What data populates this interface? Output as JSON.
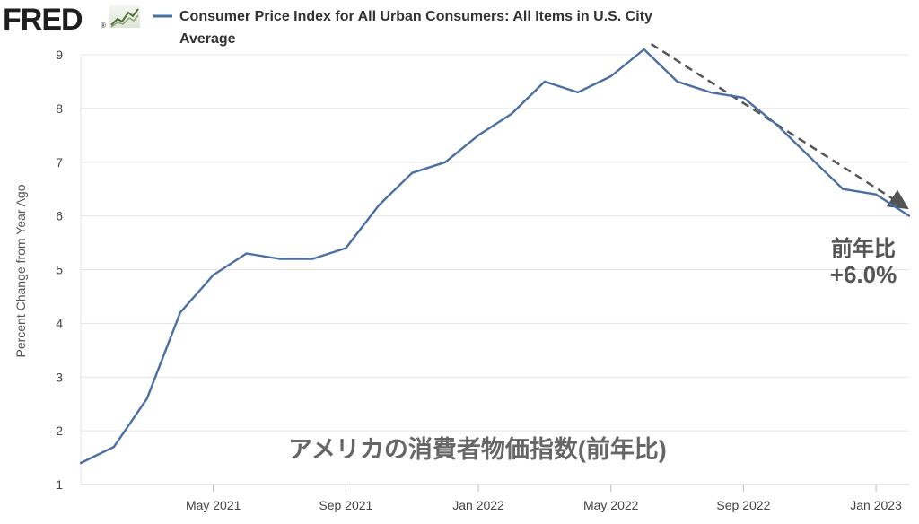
{
  "brand": {
    "logo_text": "FRED",
    "registered_mark": "®",
    "logo_icon": "line-chart-icon"
  },
  "chart_data": {
    "type": "line",
    "title": "Consumer Price Index for All Urban Consumers: All Items in U.S. City",
    "title_line2": "Average",
    "ylabel": "Percent Change from Year Ago",
    "xlabel": "",
    "ylim": [
      1,
      9
    ],
    "yticks": [
      "1",
      "2",
      "3",
      "4",
      "5",
      "6",
      "7",
      "8",
      "9"
    ],
    "grid": true,
    "legend_position": "top-left",
    "x_tick_labels": [
      "May 2021",
      "Sep 2021",
      "Jan 2022",
      "May 2022",
      "Sep 2022",
      "Jan 2023"
    ],
    "series": [
      {
        "name": "Consumer Price Index for All Urban Consumers: All Items in U.S. City Average",
        "color": "#4a6fa5",
        "points": [
          {
            "x": "2021-01",
            "y": 1.4
          },
          {
            "x": "2021-02",
            "y": 1.7
          },
          {
            "x": "2021-03",
            "y": 2.6
          },
          {
            "x": "2021-04",
            "y": 4.2
          },
          {
            "x": "2021-05",
            "y": 4.9
          },
          {
            "x": "2021-06",
            "y": 5.3
          },
          {
            "x": "2021-07",
            "y": 5.2
          },
          {
            "x": "2021-08",
            "y": 5.2
          },
          {
            "x": "2021-09",
            "y": 5.4
          },
          {
            "x": "2021-10",
            "y": 6.2
          },
          {
            "x": "2021-11",
            "y": 6.8
          },
          {
            "x": "2021-12",
            "y": 7.0
          },
          {
            "x": "2022-01",
            "y": 7.5
          },
          {
            "x": "2022-02",
            "y": 7.9
          },
          {
            "x": "2022-03",
            "y": 8.5
          },
          {
            "x": "2022-04",
            "y": 8.3
          },
          {
            "x": "2022-05",
            "y": 8.6
          },
          {
            "x": "2022-06",
            "y": 9.1
          },
          {
            "x": "2022-07",
            "y": 8.5
          },
          {
            "x": "2022-08",
            "y": 8.3
          },
          {
            "x": "2022-09",
            "y": 8.2
          },
          {
            "x": "2022-10",
            "y": 7.7
          },
          {
            "x": "2022-11",
            "y": 7.1
          },
          {
            "x": "2022-12",
            "y": 6.5
          },
          {
            "x": "2023-01",
            "y": 6.4
          },
          {
            "x": "2023-02",
            "y": 6.0
          }
        ]
      }
    ],
    "annotations": {
      "yoy_label_line1": "前年比",
      "yoy_label_line2": "+6.0%",
      "overlay_title": "アメリカの消費者物価指数(前年比)",
      "trend_arrow": {
        "from": {
          "x": "2022-06",
          "y": 9.1
        },
        "to": {
          "x": "2023-02",
          "y": 6.1
        },
        "color": "#555555"
      }
    }
  }
}
